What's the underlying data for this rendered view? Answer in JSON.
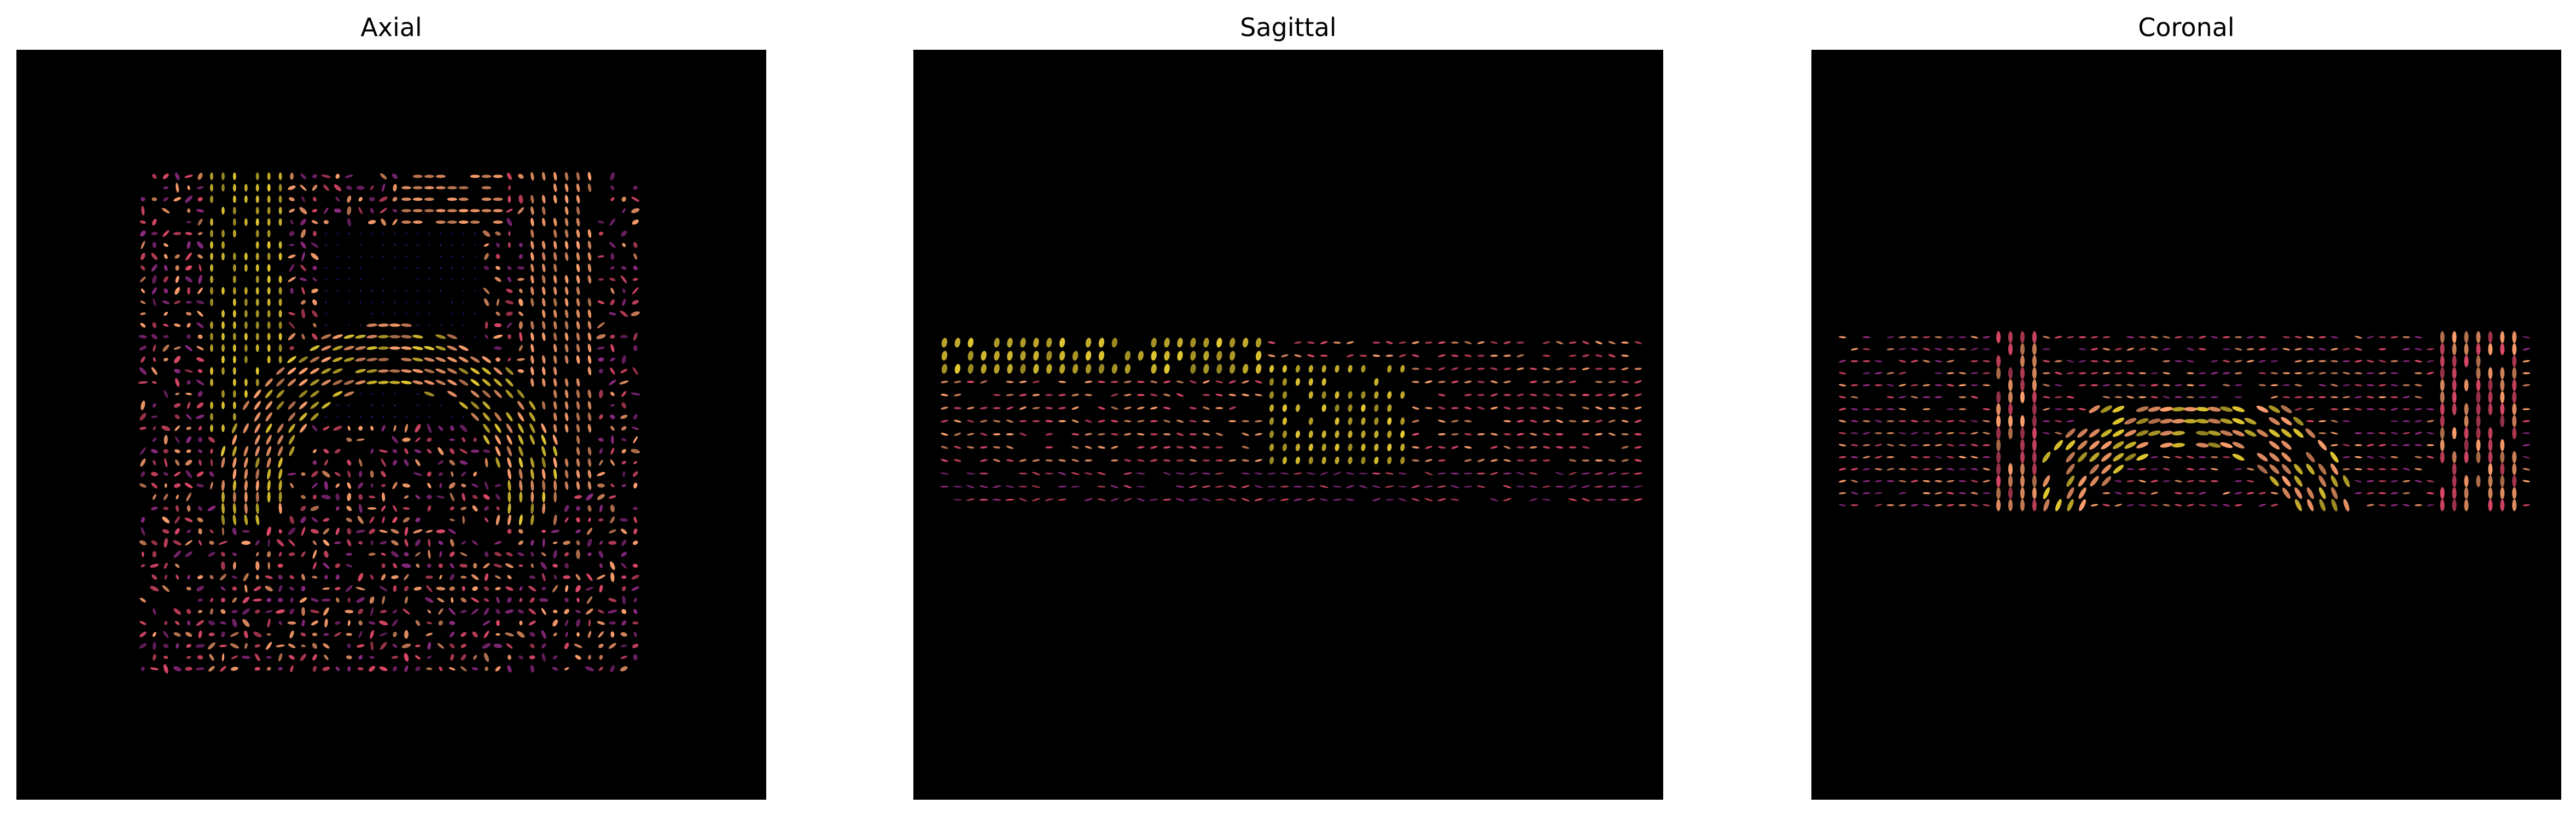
{
  "figure": {
    "background": "#ffffff",
    "viewport_background": "#000000",
    "glyph_colormap": [
      "#3b0f70",
      "#8c2981",
      "#de4968",
      "#fe9f6d",
      "#fcfdbf",
      "#e3c832"
    ],
    "panels": [
      {
        "title": "Axial"
      },
      {
        "title": "Sagittal"
      },
      {
        "title": "Coronal"
      }
    ]
  }
}
